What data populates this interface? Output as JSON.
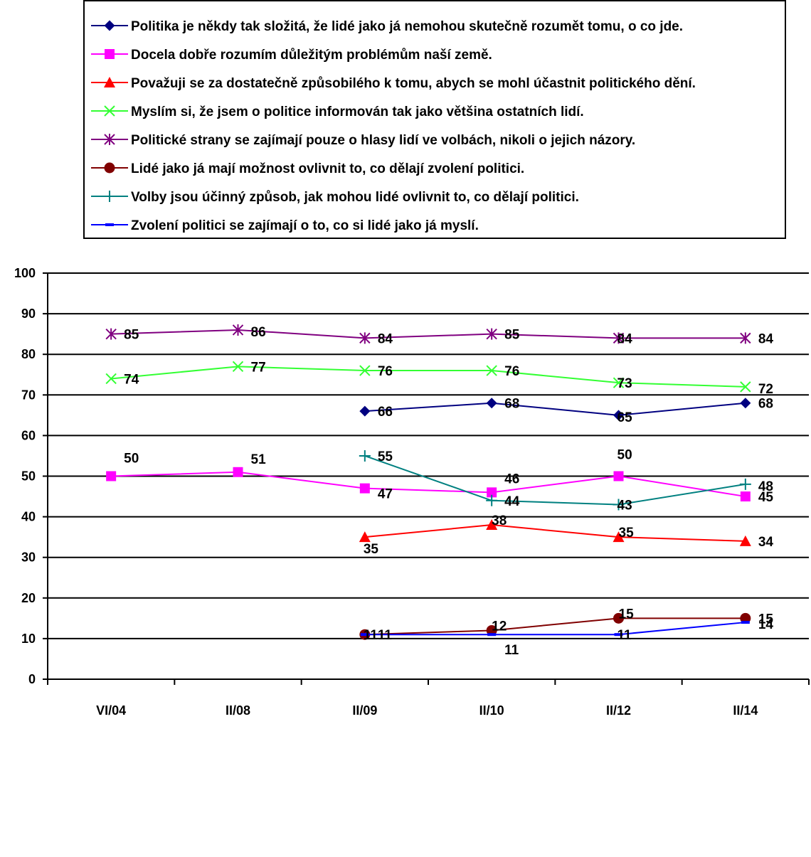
{
  "chart_data": {
    "type": "line",
    "categories": [
      "VI/04",
      "II/08",
      "II/09",
      "II/10",
      "II/12",
      "II/14"
    ],
    "ylim": [
      0,
      100
    ],
    "yticks": [
      0,
      10,
      20,
      30,
      40,
      50,
      60,
      70,
      80,
      90,
      100
    ],
    "grid": true,
    "legend_position": "top",
    "series": [
      {
        "name": "Politika je někdy tak složitá, že lidé jako já nemohou skutečně rozumět tomu, o co jde.",
        "color": "#000080",
        "marker": "diamond",
        "values": [
          null,
          null,
          66,
          68,
          65,
          68
        ]
      },
      {
        "name": "Docela dobře rozumím důležitým problémům naší země.",
        "color": "#ff00ff",
        "marker": "square",
        "values": [
          50,
          51,
          47,
          46,
          50,
          45
        ]
      },
      {
        "name": "Považuji se za dostatečně způsobilého k tomu, abych se mohl účastnit politického dění.",
        "color": "#ff0000",
        "marker": "triangle",
        "values": [
          null,
          null,
          35,
          38,
          35,
          34
        ]
      },
      {
        "name": "Myslím si, že jsem o politice informován tak jako většina ostatních lidí.",
        "color": "#33ff33",
        "marker": "x",
        "values": [
          74,
          77,
          76,
          76,
          73,
          72
        ]
      },
      {
        "name": "Politické strany se zajímají pouze o hlasy lidí ve volbách, nikoli o jejich názory.",
        "color": "#800080",
        "marker": "star",
        "values": [
          85,
          86,
          84,
          85,
          84,
          84
        ]
      },
      {
        "name": "Lidé jako já mají možnost ovlivnit to, co dělají zvolení politici.",
        "color": "#800000",
        "marker": "circle",
        "values": [
          null,
          null,
          11,
          12,
          15,
          15
        ]
      },
      {
        "name": "Volby jsou účinný způsob, jak mohou lidé ovlivnit to, co dělají politici.",
        "color": "#008080",
        "marker": "plus",
        "values": [
          null,
          null,
          55,
          44,
          43,
          48
        ]
      },
      {
        "name": "Zvolení politici se zajímají o to, co si lidé jako já myslí.",
        "color": "#0000ff",
        "marker": "dash",
        "values": [
          null,
          null,
          11,
          11,
          11,
          14
        ]
      }
    ]
  }
}
